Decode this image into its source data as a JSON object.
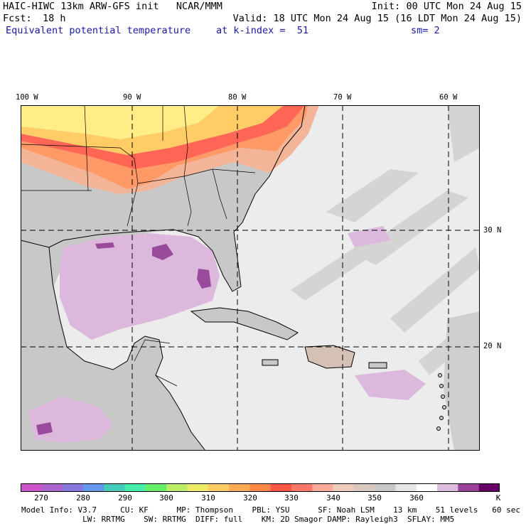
{
  "header": {
    "line1_left": "HAIC-HIWC 13km ARW-GFS init   NCAR/MMM",
    "line1_right": "Init: 00 UTC Mon 24 Aug 15",
    "fcst_label": "Fcst:",
    "fcst_value": "18 h",
    "valid": "Valid: 18 UTC Mon 24 Aug 15 (16 LDT Mon 24 Aug 15)",
    "field_name": "Equivalent potential temperature",
    "level": "at k-index =  51",
    "smoothing": "sm= 2"
  },
  "map": {
    "lon_labels": [
      "100 W",
      "90 W",
      "80 W",
      "70 W",
      "60 W"
    ],
    "lat_labels": [
      "30 N",
      "20 N"
    ],
    "land_color": "#c8c8c8",
    "ocean_color": "#ececec"
  },
  "colorbar": {
    "colors": [
      "#cc55cc",
      "#aa66cc",
      "#8877dd",
      "#6699ee",
      "#44ccbb",
      "#44eeaa",
      "#66ee66",
      "#bbee66",
      "#eeee66",
      "#ffcc66",
      "#ffaa55",
      "#ff8844",
      "#ff5544",
      "#ff7766",
      "#ffaa99",
      "#eeccbb",
      "#d8c8c0",
      "#c8c8c8",
      "#e6e6e6",
      "#ffffff",
      "#ddbbdd",
      "#994499",
      "#660066"
    ],
    "labels": [
      "270",
      "280",
      "290",
      "300",
      "310",
      "320",
      "330",
      "340",
      "350",
      "360",
      "K"
    ]
  },
  "footer": {
    "line1": "Model Info: V3.7     CU: KF      MP: Thompson    PBL: YSU      SF: Noah LSM    13 km    51 levels   60 sec",
    "line2": "             LW: RRTMG    SW: RRTMG  DIFF: full    KM: 2D Smagor DAMP: Rayleigh3  SFLAY: MM5"
  }
}
